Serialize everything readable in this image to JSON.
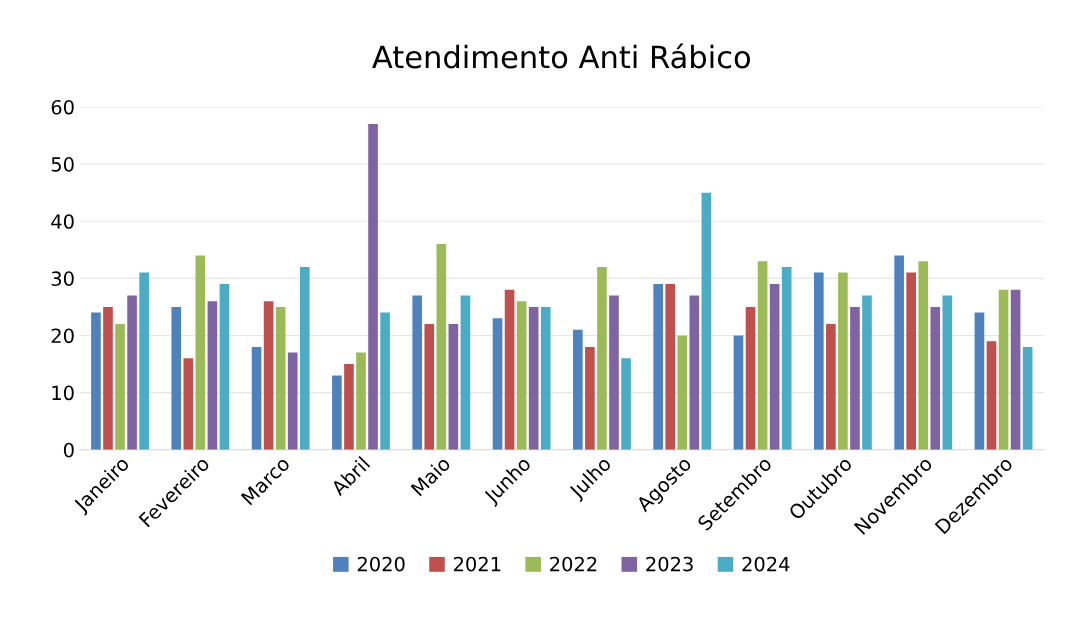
{
  "chart_data": {
    "type": "bar",
    "title": "Atendimento Anti Rábico",
    "categories": [
      "Janeiro",
      "Fevereiro",
      "Marco",
      "Abril",
      "Maio",
      "Junho",
      "Julho",
      "Agosto",
      "Setembro",
      "Outubro",
      "Novembro",
      "Dezembro"
    ],
    "series": [
      {
        "name": "2020",
        "color": "#4f81bd",
        "values": [
          24,
          25,
          18,
          13,
          27,
          23,
          21,
          29,
          20,
          31,
          34,
          24
        ]
      },
      {
        "name": "2021",
        "color": "#c0504d",
        "values": [
          25,
          16,
          26,
          15,
          22,
          28,
          18,
          29,
          25,
          22,
          31,
          19
        ]
      },
      {
        "name": "2022",
        "color": "#9bbb59",
        "values": [
          22,
          34,
          25,
          17,
          36,
          26,
          32,
          20,
          33,
          31,
          33,
          28
        ]
      },
      {
        "name": "2023",
        "color": "#8064a2",
        "values": [
          27,
          26,
          17,
          57,
          22,
          25,
          27,
          27,
          29,
          25,
          25,
          28
        ]
      },
      {
        "name": "2024",
        "color": "#4bacc6",
        "values": [
          31,
          29,
          32,
          24,
          27,
          25,
          16,
          45,
          32,
          27,
          27,
          18
        ]
      }
    ],
    "ylim": [
      0,
      60
    ],
    "yticks": [
      0,
      10,
      20,
      30,
      40,
      50,
      60
    ],
    "grid": "y",
    "legend": "bottom"
  }
}
